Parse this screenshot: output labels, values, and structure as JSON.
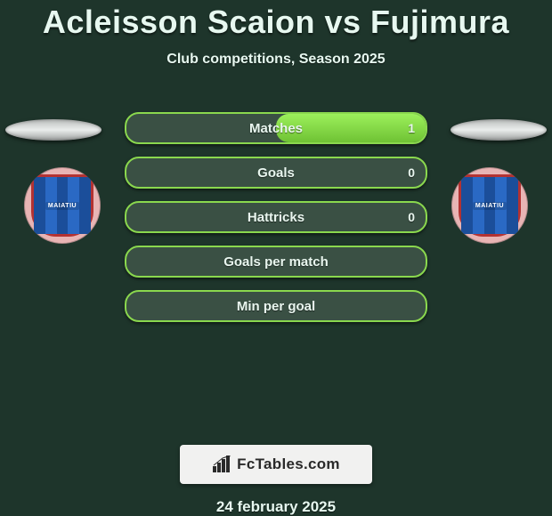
{
  "title": "Acleisson Scaion vs Fujimura",
  "subtitle": "Club competitions, Season 2025",
  "date": "24 february 2025",
  "branding": {
    "text": "FcTables.com"
  },
  "crest": {
    "bg_color": "#e8b4b4",
    "shield_color": "#1b4e9a",
    "shield_border_color": "#b33232",
    "label": "MAIATIU"
  },
  "style": {
    "page_bg": "#1e352b",
    "pill_border": "#8ad84e",
    "pill_bg": "#3a5044",
    "pill_fill_top": "#9cf05b",
    "pill_fill_bottom": "#6fc234",
    "text_color": "#e9f6ef"
  },
  "rows": [
    {
      "label": "Matches",
      "left": "",
      "right": "1",
      "left_pct": 0,
      "right_pct": 100
    },
    {
      "label": "Goals",
      "left": "",
      "right": "0",
      "left_pct": 0,
      "right_pct": 0
    },
    {
      "label": "Hattricks",
      "left": "",
      "right": "0",
      "left_pct": 0,
      "right_pct": 0
    },
    {
      "label": "Goals per match",
      "left": "",
      "right": "",
      "left_pct": 0,
      "right_pct": 0
    },
    {
      "label": "Min per goal",
      "left": "",
      "right": "",
      "left_pct": 0,
      "right_pct": 0
    }
  ]
}
